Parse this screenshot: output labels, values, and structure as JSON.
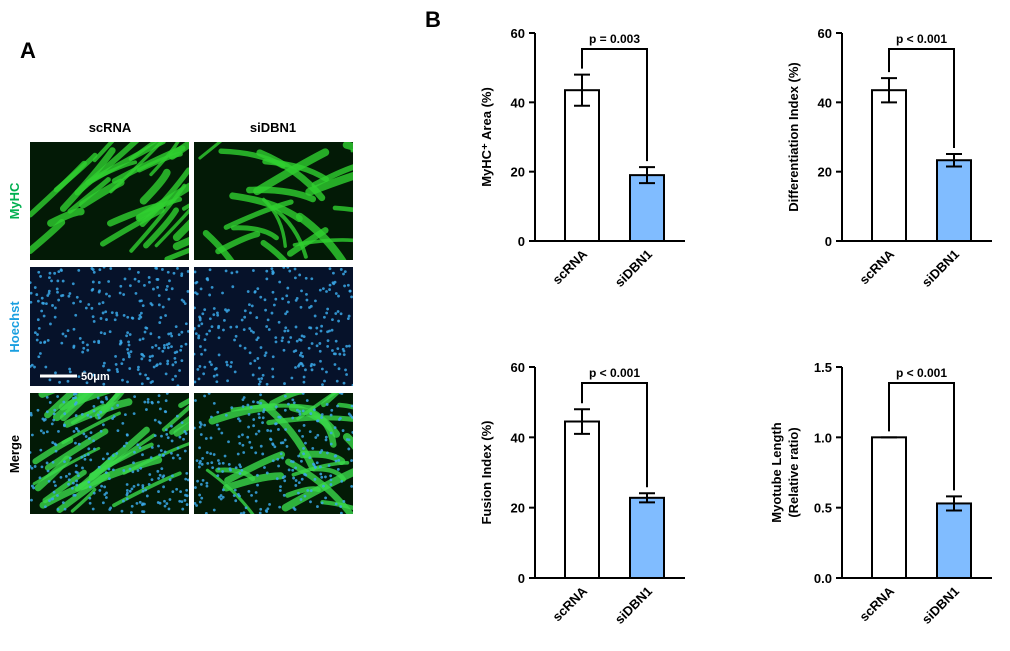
{
  "panel_a": {
    "label": "A",
    "columns": [
      "scRNA",
      "siDBN1"
    ],
    "rows": [
      "MyHC",
      "Hoechst",
      "Merge"
    ],
    "scale_bar": "50μm"
  },
  "panel_b": {
    "label": "B"
  },
  "chart_data": [
    {
      "type": "bar",
      "ylabel": [
        "MyHC⁺ Area (%)"
      ],
      "categories": [
        "scRNA",
        "siDBN1"
      ],
      "values": [
        43.5,
        19
      ],
      "errors": [
        4.5,
        2.3
      ],
      "colors": [
        "#ffffff",
        "#80bcff"
      ],
      "ylim": [
        0,
        60
      ],
      "yticks": [
        0,
        20,
        40,
        60
      ],
      "annotation": "p = 0.003"
    },
    {
      "type": "bar",
      "ylabel": [
        "Differentiation Index (%)"
      ],
      "categories": [
        "scRNA",
        "siDBN1"
      ],
      "values": [
        43.5,
        23.3
      ],
      "errors": [
        3.5,
        1.8
      ],
      "colors": [
        "#ffffff",
        "#80bcff"
      ],
      "ylim": [
        0,
        60
      ],
      "yticks": [
        0,
        20,
        40,
        60
      ],
      "annotation": "p < 0.001"
    },
    {
      "type": "bar",
      "ylabel": [
        "Fusion Index (%)"
      ],
      "categories": [
        "scRNA",
        "siDBN1"
      ],
      "values": [
        44.5,
        22.8
      ],
      "errors": [
        3.5,
        1.3
      ],
      "colors": [
        "#ffffff",
        "#80bcff"
      ],
      "ylim": [
        0,
        60
      ],
      "yticks": [
        0,
        20,
        40,
        60
      ],
      "annotation": "p < 0.001"
    },
    {
      "type": "bar",
      "ylabel": [
        "Myotube Length",
        "(Relative ratio)"
      ],
      "categories": [
        "scRNA",
        "siDBN1"
      ],
      "values": [
        1.0,
        0.53
      ],
      "errors": [
        0,
        0.05
      ],
      "colors": [
        "#ffffff",
        "#80bcff"
      ],
      "ylim": [
        0,
        1.5
      ],
      "yticks": [
        {
          "value": 0,
          "label": "0.0"
        },
        {
          "value": 0.5,
          "label": "0.5"
        },
        {
          "value": 1,
          "label": "1.0"
        },
        {
          "value": 1.5,
          "label": "1.5"
        }
      ],
      "annotation": "p < 0.001"
    }
  ]
}
